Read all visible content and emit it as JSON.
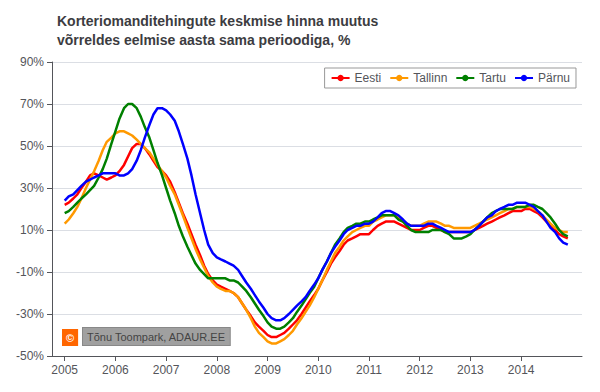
{
  "chart_data": {
    "type": "line",
    "title": "Korteriomanditehingute keskmise hinna muutus\nvõrreldes eelmise aasta sama perioodiga, %",
    "x": [
      2005.0,
      2005.08,
      2005.17,
      2005.25,
      2005.33,
      2005.42,
      2005.5,
      2005.58,
      2005.67,
      2005.75,
      2005.83,
      2005.92,
      2006.0,
      2006.08,
      2006.17,
      2006.25,
      2006.33,
      2006.42,
      2006.5,
      2006.58,
      2006.67,
      2006.75,
      2006.83,
      2006.92,
      2007.0,
      2007.08,
      2007.17,
      2007.25,
      2007.33,
      2007.42,
      2007.5,
      2007.58,
      2007.67,
      2007.75,
      2007.83,
      2007.92,
      2008.0,
      2008.08,
      2008.17,
      2008.25,
      2008.33,
      2008.42,
      2008.5,
      2008.58,
      2008.67,
      2008.75,
      2008.83,
      2008.92,
      2009.0,
      2009.08,
      2009.17,
      2009.25,
      2009.33,
      2009.42,
      2009.5,
      2009.58,
      2009.67,
      2009.75,
      2009.83,
      2009.92,
      2010.0,
      2010.08,
      2010.17,
      2010.25,
      2010.33,
      2010.42,
      2010.5,
      2010.58,
      2010.67,
      2010.75,
      2010.83,
      2010.92,
      2011.0,
      2011.08,
      2011.17,
      2011.25,
      2011.33,
      2011.42,
      2011.5,
      2011.58,
      2011.67,
      2011.75,
      2011.83,
      2011.92,
      2012.0,
      2012.08,
      2012.17,
      2012.25,
      2012.33,
      2012.42,
      2012.5,
      2012.58,
      2012.67,
      2012.75,
      2012.83,
      2012.92,
      2013.0,
      2013.08,
      2013.17,
      2013.25,
      2013.33,
      2013.42,
      2013.5,
      2013.58,
      2013.67,
      2013.75,
      2013.83,
      2013.92,
      2014.0,
      2014.08,
      2014.17,
      2014.25,
      2014.33,
      2014.42,
      2014.5,
      2014.58,
      2014.67,
      2014.75,
      2014.83,
      2014.92
    ],
    "series": [
      {
        "name": "Eesti",
        "color": "#ff0000",
        "values": [
          22,
          23,
          25,
          27,
          30,
          33,
          36,
          37,
          36,
          35,
          34,
          35,
          36,
          38,
          41,
          45,
          49,
          51,
          51,
          49,
          46,
          43,
          40,
          38,
          36,
          33,
          28,
          23,
          18,
          13,
          8,
          3,
          -2,
          -7,
          -11,
          -14,
          -16,
          -17,
          -18,
          -19,
          -20,
          -22,
          -25,
          -28,
          -31,
          -34,
          -36,
          -38,
          -40,
          -41,
          -41,
          -40,
          -39,
          -37,
          -35,
          -33,
          -30,
          -27,
          -24,
          -21,
          -18,
          -14,
          -10,
          -6,
          -3,
          0,
          3,
          5,
          6,
          7,
          8,
          8,
          8,
          10,
          12,
          13,
          14,
          14,
          14,
          13,
          12,
          11,
          10,
          10,
          10,
          11,
          12,
          12,
          11,
          10,
          9,
          9,
          9,
          9,
          9,
          9,
          9,
          10,
          11,
          12,
          13,
          14,
          15,
          16,
          17,
          18,
          19,
          19,
          19,
          20,
          20,
          19,
          18,
          16,
          14,
          12,
          10,
          8,
          7,
          6
        ]
      },
      {
        "name": "Tallinn",
        "color": "#ff9900",
        "values": [
          13,
          15,
          18,
          21,
          25,
          30,
          34,
          38,
          43,
          48,
          52,
          54,
          56,
          57,
          57,
          56,
          55,
          53,
          51,
          49,
          47,
          44,
          41,
          38,
          35,
          31,
          27,
          22,
          17,
          11,
          6,
          1,
          -4,
          -8,
          -12,
          -15,
          -17,
          -18,
          -19,
          -19,
          -20,
          -22,
          -25,
          -28,
          -32,
          -36,
          -39,
          -41,
          -43,
          -44,
          -44,
          -43,
          -42,
          -40,
          -38,
          -35,
          -32,
          -29,
          -26,
          -22,
          -18,
          -14,
          -9,
          -5,
          -1,
          2,
          5,
          7,
          9,
          10,
          11,
          12,
          12,
          14,
          15,
          16,
          17,
          17,
          17,
          16,
          14,
          13,
          12,
          12,
          12,
          13,
          14,
          14,
          14,
          13,
          12,
          12,
          11,
          11,
          11,
          11,
          11,
          12,
          13,
          14,
          15,
          16,
          17,
          18,
          19,
          20,
          20,
          21,
          21,
          21,
          21,
          20,
          19,
          17,
          15,
          13,
          11,
          10,
          9,
          9
        ]
      },
      {
        "name": "Tartu",
        "color": "#008000",
        "values": [
          18,
          19,
          21,
          23,
          25,
          27,
          29,
          31,
          35,
          39,
          44,
          51,
          57,
          63,
          68,
          70,
          70,
          68,
          64,
          59,
          54,
          48,
          42,
          36,
          30,
          24,
          18,
          12,
          7,
          2,
          -2,
          -6,
          -9,
          -11,
          -13,
          -13,
          -13,
          -13,
          -13,
          -14,
          -14,
          -15,
          -17,
          -19,
          -22,
          -25,
          -28,
          -31,
          -34,
          -36,
          -37,
          -37,
          -36,
          -34,
          -32,
          -29,
          -26,
          -23,
          -20,
          -17,
          -13,
          -9,
          -5,
          -1,
          3,
          6,
          9,
          11,
          12,
          13,
          13,
          14,
          14,
          15,
          16,
          17,
          17,
          17,
          17,
          15,
          14,
          12,
          10,
          9,
          9,
          9,
          9,
          10,
          10,
          10,
          9,
          8,
          6,
          6,
          6,
          7,
          8,
          10,
          12,
          14,
          16,
          18,
          19,
          20,
          20,
          20,
          20,
          21,
          21,
          21,
          22,
          22,
          21,
          20,
          18,
          16,
          13,
          10,
          8,
          7
        ]
      },
      {
        "name": "Pärnu",
        "color": "#0000ff",
        "values": [
          24,
          26,
          27,
          29,
          31,
          33,
          34,
          35,
          36,
          37,
          37,
          37,
          37,
          36,
          36,
          37,
          39,
          43,
          48,
          54,
          60,
          65,
          68,
          68,
          67,
          65,
          62,
          57,
          51,
          44,
          36,
          27,
          18,
          10,
          3,
          -1,
          -3,
          -4,
          -5,
          -6,
          -7,
          -9,
          -12,
          -15,
          -18,
          -21,
          -24,
          -27,
          -30,
          -32,
          -33,
          -33,
          -32,
          -30,
          -28,
          -26,
          -24,
          -22,
          -19,
          -16,
          -13,
          -9,
          -5,
          -1,
          2,
          5,
          8,
          10,
          11,
          12,
          12,
          13,
          13,
          14,
          16,
          18,
          19,
          19,
          18,
          17,
          15,
          13,
          12,
          12,
          12,
          12,
          13,
          13,
          12,
          11,
          10,
          9,
          9,
          9,
          9,
          9,
          9,
          10,
          12,
          14,
          16,
          17,
          19,
          20,
          21,
          22,
          22,
          23,
          23,
          23,
          22,
          21,
          19,
          17,
          14,
          11,
          9,
          6,
          4,
          3
        ]
      }
    ],
    "xlim": [
      2004.75,
      2015.2
    ],
    "xticks": [
      2005,
      2006,
      2007,
      2008,
      2009,
      2010,
      2011,
      2012,
      2013,
      2014
    ],
    "ylim": [
      -50,
      90
    ],
    "yticks": [
      {
        "value": -50,
        "label": "-50%"
      },
      {
        "value": -30,
        "label": "-30%"
      },
      {
        "value": -10,
        "label": "-10%"
      },
      {
        "value": 10,
        "label": "10%"
      },
      {
        "value": 30,
        "label": "30%"
      },
      {
        "value": 50,
        "label": "50%"
      },
      {
        "value": 70,
        "label": "70%"
      },
      {
        "value": 90,
        "label": "90%"
      }
    ],
    "grid": true,
    "legend": "upper right",
    "annotations": [
      "©",
      "Tõnu Toompark, ADAUR.EE"
    ]
  }
}
